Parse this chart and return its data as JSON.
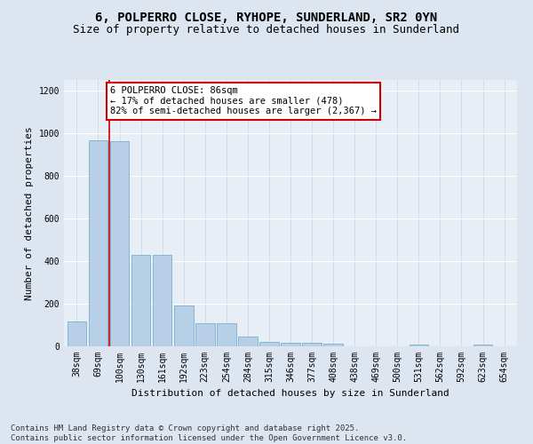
{
  "title": "6, POLPERRO CLOSE, RYHOPE, SUNDERLAND, SR2 0YN",
  "subtitle": "Size of property relative to detached houses in Sunderland",
  "xlabel": "Distribution of detached houses by size in Sunderland",
  "ylabel": "Number of detached properties",
  "categories": [
    "38sqm",
    "69sqm",
    "100sqm",
    "130sqm",
    "161sqm",
    "192sqm",
    "223sqm",
    "254sqm",
    "284sqm",
    "315sqm",
    "346sqm",
    "377sqm",
    "408sqm",
    "438sqm",
    "469sqm",
    "500sqm",
    "531sqm",
    "562sqm",
    "592sqm",
    "623sqm",
    "654sqm"
  ],
  "values": [
    115,
    968,
    963,
    430,
    430,
    190,
    110,
    110,
    45,
    22,
    18,
    18,
    13,
    0,
    0,
    0,
    7,
    0,
    0,
    8,
    0
  ],
  "bar_color": "#b8cfe8",
  "bar_edge_color": "#7aaed0",
  "property_line_x": 1.5,
  "property_line_color": "#cc0000",
  "annotation_text": "6 POLPERRO CLOSE: 86sqm\n← 17% of detached houses are smaller (478)\n82% of semi-detached houses are larger (2,367) →",
  "annotation_box_color": "#cc0000",
  "ylim": [
    0,
    1250
  ],
  "yticks": [
    0,
    200,
    400,
    600,
    800,
    1000,
    1200
  ],
  "footer_text": "Contains HM Land Registry data © Crown copyright and database right 2025.\nContains public sector information licensed under the Open Government Licence v3.0.",
  "bg_color": "#dde6f0",
  "plot_bg_color": "#e8eef5",
  "title_fontsize": 10,
  "subtitle_fontsize": 9,
  "axis_label_fontsize": 8,
  "tick_fontsize": 7,
  "annotation_fontsize": 7.5,
  "footer_fontsize": 6.5
}
